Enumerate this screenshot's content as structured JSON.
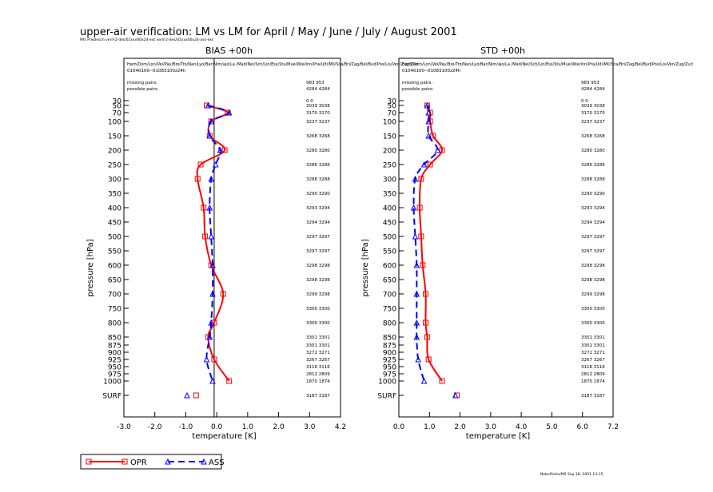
{
  "title": "upper-air verification: LM vs LM for April / May / June / July / August 2001",
  "subtitle": "Mfs Prwdesch  verif-2-des/01xxx00x24-ext verif-2-des/01xxx00x24-ass-ext",
  "footer": "NebelSelm/MS Sep 18, 2001 13:15",
  "colors": {
    "opr": "#ff0000",
    "ass": "#0000ff",
    "axis": "#000000"
  },
  "legend": {
    "opr": "OPR",
    "ass": "ASS"
  },
  "panel_header": {
    "stations": "Ham/Dom/Lon/Vel/Pay/Bre/Tro/Nan/Lyo/Bar/Nim/ajo/La /Mad/Nei/Sch/Lin/Ess/Stu/Mue/Wie/Inn/Pra/Udi/Mil/Sca/Bri/Zag/Bel/Bud/Pos/Lis/Ven/Zug/Zur/",
    "period": "01040100--01083100z24h",
    "missing_label": "missing pairs:",
    "possible_label": "possible pairs:",
    "missing_values": "983  953",
    "possible_values": "4284  4284",
    "surface_level": "SURF"
  },
  "counts": [
    {
      "level": "30",
      "text": "0    0"
    },
    {
      "level": "50",
      "text": "3039 3038"
    },
    {
      "level": "70",
      "text": "3170 3170"
    },
    {
      "level": "100",
      "text": "3237 3237"
    },
    {
      "level": "150",
      "text": "3268 3268"
    },
    {
      "level": "200",
      "text": "3280 3280"
    },
    {
      "level": "250",
      "text": "3286 3286"
    },
    {
      "level": "300",
      "text": "3288 3288"
    },
    {
      "level": "350",
      "text": "3290 3290"
    },
    {
      "level": "400",
      "text": "3293 3294"
    },
    {
      "level": "450",
      "text": "3294 3294"
    },
    {
      "level": "500",
      "text": "3297 3297"
    },
    {
      "level": "550",
      "text": "3297 3297"
    },
    {
      "level": "600",
      "text": "3298 3298"
    },
    {
      "level": "650",
      "text": "3298 3298"
    },
    {
      "level": "700",
      "text": "3299 3298"
    },
    {
      "level": "750",
      "text": "3300 3300"
    },
    {
      "level": "800",
      "text": "3300 3300"
    },
    {
      "level": "850",
      "text": "3301 3301"
    },
    {
      "level": "875",
      "text": "3301 3301"
    },
    {
      "level": "900",
      "text": "3272 3271"
    },
    {
      "level": "925",
      "text": "3267 3267"
    },
    {
      "level": "950",
      "text": "3116 3116"
    },
    {
      "level": "975",
      "text": "2812 2809"
    },
    {
      "level": "1000",
      "text": "1870 1874"
    },
    {
      "level": "SURF",
      "text": "3187 3187"
    }
  ],
  "chart_data": [
    {
      "type": "line",
      "title": "BIAS    +00h",
      "xlabel": "temperature  [K]",
      "ylabel": "pressure  [hPa]",
      "xlim": [
        -3.0,
        4.2
      ],
      "xticks": [
        "-3.0",
        "-2.0",
        "-1.0",
        "0.0",
        "1.0",
        "2.0",
        "3.0",
        "4.2"
      ],
      "levels": [
        "30",
        "50",
        "70",
        "100",
        "150",
        "200",
        "250",
        "300",
        "350",
        "400",
        "450",
        "500",
        "550",
        "600",
        "650",
        "700",
        "750",
        "800",
        "850",
        "875",
        "900",
        "925",
        "950",
        "975",
        "1000"
      ],
      "level_ticks": [
        "30",
        "50",
        "70",
        "100",
        "150",
        "200",
        "250",
        "300",
        "350",
        "400",
        "450",
        "500",
        "550",
        "600",
        "650",
        "700",
        "750",
        "800",
        "850",
        "875",
        "900",
        "925",
        "950",
        "975",
        "1000",
        "SURF"
      ],
      "pressure": [
        50,
        70,
        100,
        150,
        200,
        250,
        300,
        400,
        500,
        600,
        700,
        800,
        850,
        925,
        1000
      ],
      "series": [
        {
          "name": "OPR",
          "values": [
            -0.25,
            0.45,
            -0.1,
            -0.15,
            0.35,
            -0.45,
            -0.55,
            -0.35,
            -0.3,
            -0.1,
            0.3,
            0.0,
            -0.2,
            0.0,
            0.5
          ],
          "surface": -0.6
        },
        {
          "name": "ASS",
          "values": [
            -0.2,
            0.5,
            -0.1,
            -0.15,
            0.2,
            0.05,
            -0.1,
            -0.15,
            -0.1,
            -0.05,
            -0.05,
            -0.1,
            -0.15,
            -0.25,
            -0.05
          ],
          "surface": -0.9
        }
      ]
    },
    {
      "type": "line",
      "title": "STD    +00h",
      "xlabel": "temperature  [K]",
      "ylabel": "pressure  [hPa]",
      "xlim": [
        0.0,
        7.2
      ],
      "xticks": [
        "0.0",
        "1.0",
        "2.0",
        "3.0",
        "4.0",
        "5.0",
        "6.0",
        "7.2"
      ],
      "levels": [
        "30",
        "50",
        "70",
        "100",
        "150",
        "200",
        "250",
        "300",
        "350",
        "400",
        "450",
        "500",
        "550",
        "600",
        "650",
        "700",
        "750",
        "800",
        "850",
        "875",
        "900",
        "925",
        "950",
        "975",
        "1000"
      ],
      "level_ticks": [
        "30",
        "50",
        "70",
        "100",
        "150",
        "200",
        "250",
        "300",
        "350",
        "400",
        "450",
        "500",
        "550",
        "600",
        "650",
        "700",
        "750",
        "800",
        "850",
        "875",
        "900",
        "925",
        "950",
        "975",
        "1000",
        "SURF"
      ],
      "pressure": [
        50,
        70,
        100,
        150,
        200,
        250,
        300,
        400,
        500,
        600,
        700,
        800,
        850,
        925,
        1000
      ],
      "series": [
        {
          "name": "OPR",
          "values": [
            0.95,
            1.05,
            1.05,
            1.15,
            1.45,
            1.05,
            0.75,
            0.7,
            0.75,
            0.8,
            0.9,
            0.9,
            0.95,
            1.0,
            1.45
          ],
          "surface": 1.95
        },
        {
          "name": "ASS",
          "values": [
            0.95,
            1.0,
            1.0,
            1.0,
            1.3,
            0.85,
            0.55,
            0.5,
            0.55,
            0.6,
            0.6,
            0.6,
            0.6,
            0.65,
            0.85
          ],
          "surface": 1.9
        }
      ]
    }
  ]
}
